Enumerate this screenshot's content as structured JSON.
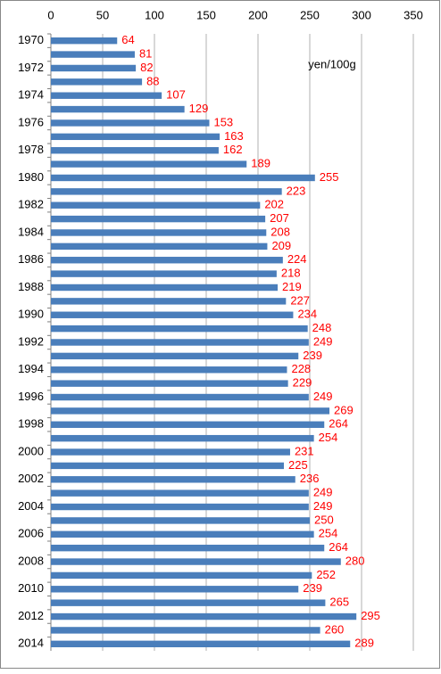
{
  "chart_data": {
    "type": "bar",
    "orientation": "horizontal",
    "annotation": "yen/100g",
    "categories": [
      "1970",
      null,
      "1972",
      null,
      "1974",
      null,
      "1976",
      null,
      "1978",
      null,
      "1980",
      null,
      "1982",
      null,
      "1984",
      null,
      "1986",
      null,
      "1988",
      null,
      "1990",
      null,
      "1992",
      null,
      "1994",
      null,
      "1996",
      null,
      "1998",
      null,
      "2000",
      null,
      "2002",
      null,
      "2004",
      null,
      "2006",
      null,
      "2008",
      null,
      "2010",
      null,
      "2012",
      null,
      "2014"
    ],
    "values": [
      64,
      81,
      82,
      88,
      107,
      129,
      153,
      163,
      162,
      189,
      255,
      223,
      202,
      207,
      208,
      209,
      224,
      218,
      219,
      227,
      234,
      248,
      249,
      239,
      228,
      229,
      249,
      269,
      264,
      254,
      231,
      225,
      236,
      249,
      249,
      250,
      254,
      264,
      280,
      252,
      239,
      265,
      295,
      260,
      289
    ],
    "color": "#4a7ebb",
    "label_color": "#ff0000",
    "xlim": [
      0,
      350
    ],
    "xticks": [
      0,
      50,
      100,
      150,
      200,
      250,
      300,
      350
    ],
    "grid": true
  }
}
